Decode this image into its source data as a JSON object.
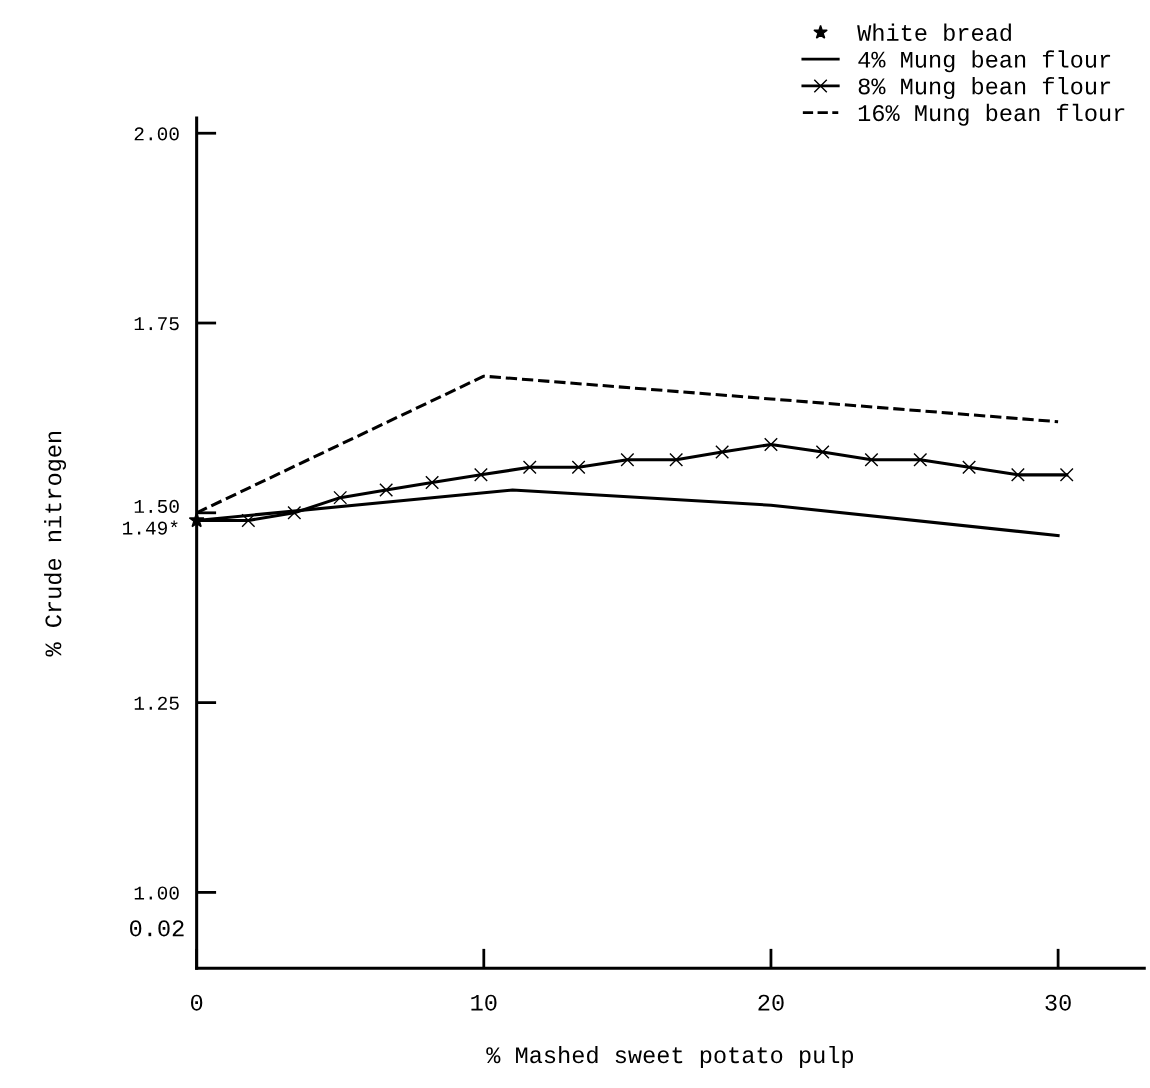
{
  "chart_data": {
    "type": "line",
    "xlabel": "% Mashed sweet potato pulp",
    "ylabel": "% Crude nitrogen",
    "xlim": [
      0,
      33
    ],
    "xticks": [
      0,
      10,
      20,
      30
    ],
    "ylim": [
      0.9,
      2.02
    ],
    "annotations": [
      "0.02"
    ],
    "yticks": [
      {
        "value": 1.0,
        "label": "1.00"
      },
      {
        "value": 1.25,
        "label": "1.25"
      },
      {
        "value": 1.49,
        "label": "1.49*"
      },
      {
        "value": 1.5,
        "label": "1.50"
      },
      {
        "value": 1.75,
        "label": "1.75"
      },
      {
        "value": 2.0,
        "label": "2.00"
      }
    ],
    "grid": false,
    "legend": "top right",
    "series": [
      {
        "name": "White bread",
        "type": "scatter",
        "marker": "star",
        "color": "#000000",
        "x": [
          0
        ],
        "values": [
          1.49
        ]
      },
      {
        "name": "4% Mung bean flour",
        "color": "#000000",
        "line_style": "solid",
        "marker": "none",
        "x": [
          0,
          11,
          20,
          30
        ],
        "values": [
          1.49,
          1.53,
          1.51,
          1.47
        ]
      },
      {
        "name": "8% Mung bean flour",
        "color": "#000000",
        "line_style": "solid",
        "marker": "cross",
        "x": [
          0,
          1.8,
          3.4,
          5,
          6.6,
          8.2,
          9.9,
          11.6,
          13.3,
          15,
          16.7,
          18.3,
          20,
          21.8,
          23.5,
          25.2,
          26.9,
          28.6,
          30.3
        ],
        "values": [
          1.49,
          1.49,
          1.5,
          1.52,
          1.53,
          1.54,
          1.55,
          1.56,
          1.56,
          1.57,
          1.57,
          1.58,
          1.59,
          1.58,
          1.57,
          1.57,
          1.56,
          1.55,
          1.55
        ]
      },
      {
        "name": "16% Mung bean flour",
        "color": "#000000",
        "line_style": "dashed",
        "marker": "none",
        "x": [
          0,
          10,
          20,
          30
        ],
        "values": [
          1.5,
          1.68,
          1.65,
          1.62
        ]
      }
    ]
  }
}
